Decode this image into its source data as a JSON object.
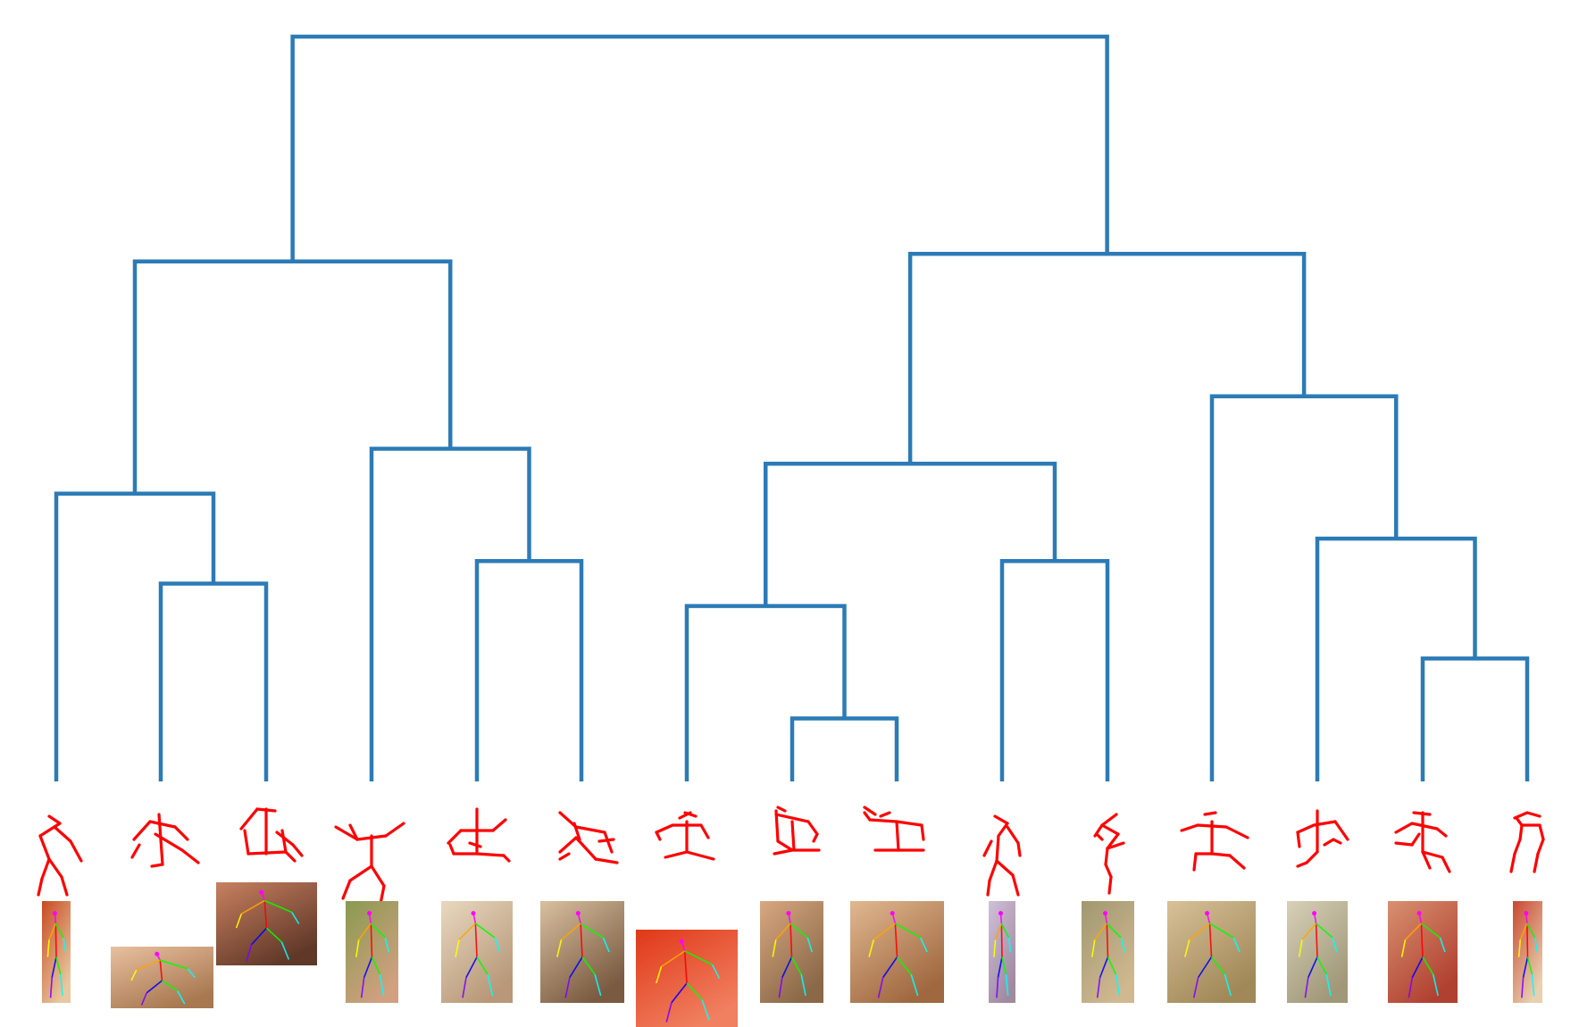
{
  "colors": {
    "background": "#ffffff",
    "tree_line": "#2c7bb6",
    "skeleton": "#ff0000",
    "joint_colors": [
      "#ff00ff",
      "#ff0000",
      "#ffa500",
      "#ffff00",
      "#00ff00",
      "#00ffff",
      "#0000ff",
      "#8000ff"
    ]
  },
  "leaves": [
    {
      "thumb_tone": [
        "#c84a22",
        "#e8c8a0"
      ]
    },
    {
      "thumb_tone": [
        "#e8c0a0",
        "#a87850"
      ]
    },
    {
      "thumb_tone": [
        "#c88060",
        "#603828"
      ]
    },
    {
      "thumb_tone": [
        "#8a9a50",
        "#d0a080"
      ]
    },
    {
      "thumb_tone": [
        "#e8d8c0",
        "#b89878"
      ]
    },
    {
      "thumb_tone": [
        "#d8c0a0",
        "#7a5a40"
      ]
    },
    {
      "thumb_tone": [
        "#e03818",
        "#f08060"
      ]
    },
    {
      "thumb_tone": [
        "#d8a880",
        "#8a6848"
      ]
    },
    {
      "thumb_tone": [
        "#e0b890",
        "#a06840"
      ]
    },
    {
      "thumb_tone": [
        "#d0c0d8",
        "#a08aa0"
      ]
    },
    {
      "thumb_tone": [
        "#a09870",
        "#d0b890"
      ]
    },
    {
      "thumb_tone": [
        "#d8c098",
        "#a08858"
      ]
    },
    {
      "thumb_tone": [
        "#d8d0b8",
        "#a09878"
      ]
    },
    {
      "thumb_tone": [
        "#d89070",
        "#b04030"
      ]
    },
    {
      "thumb_tone": [
        "#c84830",
        "#e8d0b0"
      ]
    }
  ],
  "tree": {
    "merges": [
      {
        "left": 1,
        "right": 2,
        "height": 0.27
      },
      {
        "left": 0,
        "right": "m0",
        "height": 0.39
      },
      {
        "left": 4,
        "right": 5,
        "height": 0.3
      },
      {
        "left": 3,
        "right": "m2",
        "height": 0.45
      },
      {
        "left": "m1",
        "right": "m3",
        "height": 0.7
      },
      {
        "left": 7,
        "right": 8,
        "height": 0.09
      },
      {
        "left": 6,
        "right": "m5",
        "height": 0.24
      },
      {
        "left": 9,
        "right": 10,
        "height": 0.3
      },
      {
        "left": "m6",
        "right": "m7",
        "height": 0.43
      },
      {
        "left": 13,
        "right": 14,
        "height": 0.17
      },
      {
        "left": 12,
        "right": "m9",
        "height": 0.33
      },
      {
        "left": 11,
        "right": "m10",
        "height": 0.52
      },
      {
        "left": "m8",
        "right": "m11",
        "height": 0.71
      },
      {
        "left": "m4",
        "right": "m12",
        "height": 1.0
      }
    ]
  }
}
